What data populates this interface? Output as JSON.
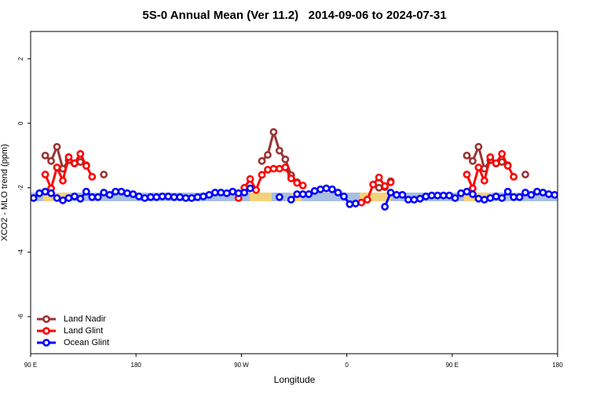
{
  "chart_data": {
    "type": "line",
    "title": "5S-0 Annual Mean (Ver 11.2)   2014-09-06 to 2024-07-31",
    "x_label": "Longitude",
    "y_label": "XCO2 - MLO trend (ppm)",
    "x": [
      92.5,
      97.5,
      102.5,
      107.5,
      112.5,
      117.5,
      122.5,
      127.5,
      132.5,
      137.5,
      142.5,
      147.5,
      152.5,
      157.5,
      162.5,
      167.5,
      172.5,
      177.5,
      182.5,
      187.5,
      192.5,
      197.5,
      202.5,
      207.5,
      212.5,
      217.5,
      222.5,
      227.5,
      232.5,
      237.5,
      242.5,
      247.5,
      252.5,
      257.5,
      262.5,
      267.5,
      272.5,
      277.5,
      282.5,
      287.5,
      292.5,
      297.5,
      302.5,
      307.5,
      312.5,
      317.5,
      322.5,
      327.5,
      332.5,
      337.5,
      342.5,
      347.5,
      352.5,
      357.5,
      362.5,
      367.5,
      372.5,
      377.5,
      382.5,
      387.5,
      392.5,
      397.5,
      402.5,
      407.5,
      412.5,
      417.5,
      422.5,
      427.5,
      432.5,
      437.5,
      442.5,
      447.5,
      452.5,
      457.5,
      462.5,
      467.5,
      472.5,
      477.5,
      482.5,
      487.5,
      492.5,
      497.5,
      502.5,
      507.5,
      512.5,
      517.5,
      522.5,
      527.5,
      532.5,
      537.5
    ],
    "series": [
      {
        "name": "Land Nadir",
        "color": "#993333",
        "values": [
          null,
          null,
          -1.0,
          -1.17,
          -0.73,
          -1.41,
          -1.15,
          -1.25,
          -1.2,
          -1.3,
          null,
          null,
          -1.59,
          null,
          null,
          null,
          null,
          null,
          null,
          null,
          null,
          null,
          null,
          null,
          null,
          null,
          null,
          null,
          null,
          null,
          null,
          null,
          null,
          null,
          null,
          null,
          null,
          null,
          null,
          -1.17,
          -0.98,
          -0.27,
          -0.85,
          -1.12,
          -1.61,
          -1.83,
          null,
          null,
          null,
          null,
          null,
          null,
          null,
          null,
          null,
          null,
          null,
          null,
          null,
          -2.0,
          -1.98,
          -1.8,
          null,
          null,
          null,
          null,
          null,
          null,
          null,
          null,
          null,
          null,
          null,
          null,
          -1.0,
          -1.17,
          -0.73,
          -1.41,
          -1.15,
          -1.25,
          -1.2,
          -1.3,
          null,
          null,
          -1.59,
          null,
          null,
          null,
          null,
          null
        ]
      },
      {
        "name": "Land Glint",
        "color": "#ff0000",
        "values": [
          null,
          null,
          -1.59,
          -2.02,
          -1.37,
          -1.78,
          -1.05,
          -1.24,
          -0.95,
          -1.32,
          -1.66,
          null,
          null,
          null,
          null,
          null,
          null,
          null,
          null,
          null,
          null,
          null,
          null,
          null,
          null,
          null,
          null,
          null,
          null,
          null,
          null,
          null,
          null,
          null,
          null,
          -2.32,
          -2.0,
          -1.73,
          -2.07,
          -1.6,
          -1.44,
          -1.41,
          -1.41,
          -1.37,
          -1.71,
          -1.85,
          -1.93,
          null,
          null,
          null,
          null,
          null,
          null,
          null,
          null,
          null,
          -2.46,
          -2.37,
          -1.9,
          -1.68,
          -1.95,
          -1.83,
          null,
          null,
          null,
          null,
          null,
          null,
          null,
          null,
          null,
          null,
          null,
          null,
          -1.59,
          -2.02,
          -1.37,
          -1.78,
          -1.05,
          -1.24,
          -0.95,
          -1.32,
          -1.66,
          null,
          null,
          null,
          null,
          null,
          null,
          null
        ]
      },
      {
        "name": "Ocean Glint",
        "color": "#0000ff",
        "values": [
          -2.32,
          -2.17,
          -2.12,
          -2.17,
          -2.32,
          -2.39,
          -2.32,
          -2.27,
          -2.34,
          -2.12,
          -2.29,
          -2.29,
          -2.15,
          -2.22,
          -2.12,
          -2.12,
          -2.17,
          -2.2,
          -2.27,
          -2.32,
          -2.29,
          -2.29,
          -2.27,
          -2.27,
          -2.29,
          -2.29,
          -2.32,
          -2.32,
          -2.29,
          -2.27,
          -2.22,
          -2.15,
          -2.15,
          -2.17,
          -2.12,
          -2.17,
          -2.15,
          -2.02,
          null,
          null,
          null,
          null,
          -2.29,
          null,
          -2.37,
          -2.2,
          -2.2,
          -2.2,
          -2.1,
          -2.05,
          -2.02,
          -2.05,
          -2.15,
          -2.27,
          -2.51,
          -2.49,
          null,
          null,
          null,
          null,
          -2.59,
          -2.15,
          -2.22,
          -2.22,
          -2.37,
          -2.37,
          -2.34,
          -2.27,
          -2.24,
          -2.24,
          -2.24,
          -2.24,
          -2.32,
          -2.17,
          -2.12,
          -2.2,
          -2.34,
          -2.37,
          -2.32,
          -2.27,
          -2.32,
          -2.12,
          -2.29,
          -2.29,
          -2.15,
          -2.22,
          -2.12,
          -2.15,
          -2.2,
          -2.22
        ]
      }
    ],
    "xlim": [
      90,
      540
    ],
    "xticks": [
      {
        "value": 90,
        "label": "90 E"
      },
      180,
      {
        "value": 270,
        "label": "90 W"
      },
      {
        "value": 360,
        "label": "0"
      },
      {
        "value": 450,
        "label": "90 E"
      },
      {
        "value": 540,
        "label": "180"
      }
    ],
    "ylim": [
      -7.15,
      2.85
    ],
    "yticks": [
      2,
      0,
      -2,
      -4,
      -6
    ],
    "legend": "bottom-left"
  }
}
